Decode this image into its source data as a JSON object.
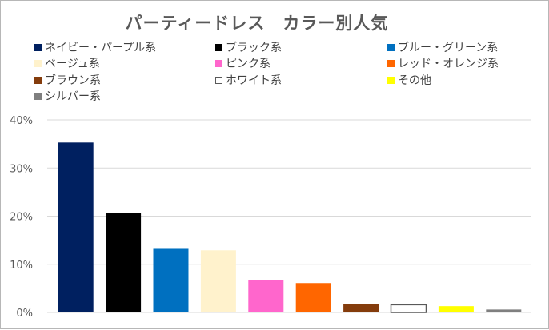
{
  "chart_data": {
    "type": "bar",
    "title": "パーティードレス　カラー別人気",
    "xlabel": "",
    "ylabel": "",
    "ylim": [
      0,
      40
    ],
    "yticks": [
      "0%",
      "10%",
      "20%",
      "30%",
      "40%"
    ],
    "grid": true,
    "legend_position": "top",
    "series": [
      {
        "name": "ネイビー・パープル系",
        "value": 35.3,
        "color": "#002060"
      },
      {
        "name": "ブラック系",
        "value": 20.7,
        "color": "#000000"
      },
      {
        "name": "ブルー・グリーン系",
        "value": 13.2,
        "color": "#0070c0"
      },
      {
        "name": "ベージュ系",
        "value": 12.9,
        "color": "#fff2cc"
      },
      {
        "name": "ピンク系",
        "value": 6.8,
        "color": "#ff66cc"
      },
      {
        "name": "レッド・オレンジ系",
        "value": 6.1,
        "color": "#ff6600"
      },
      {
        "name": "ブラウン系",
        "value": 1.8,
        "color": "#843c0c"
      },
      {
        "name": "ホワイト系",
        "value": 1.6,
        "color": "#ffffff",
        "border": "#595959"
      },
      {
        "name": "その他",
        "value": 1.3,
        "color": "#ffff00"
      },
      {
        "name": "シルバー系",
        "value": 0.6,
        "color": "#7f7f7f"
      }
    ]
  }
}
